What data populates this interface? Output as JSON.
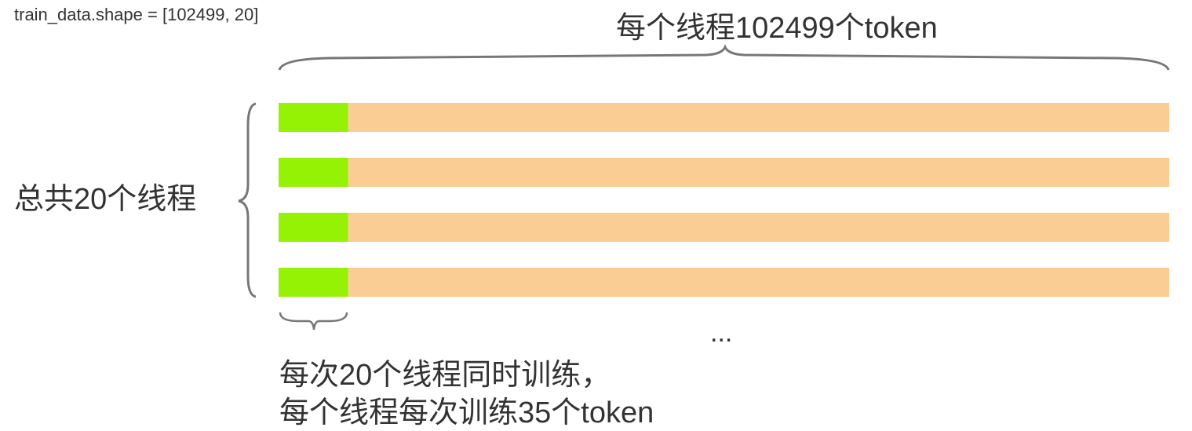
{
  "shape_label": "train_data.shape = [102499, 20]",
  "top_label": "每个线程102499个token",
  "left_label": "总共20个线程",
  "ellipsis": "...",
  "bottom_label_line1": "每次20个线程同时训练，",
  "bottom_label_line2": "每个线程每次训练35个token",
  "colors": {
    "batch": "#95f204",
    "sequence": "#f9cd93",
    "brace": "#777777"
  },
  "rows": [
    {
      "batch_fraction": 0.078
    },
    {
      "batch_fraction": 0.078
    },
    {
      "batch_fraction": 0.078
    },
    {
      "batch_fraction": 0.078
    }
  ]
}
